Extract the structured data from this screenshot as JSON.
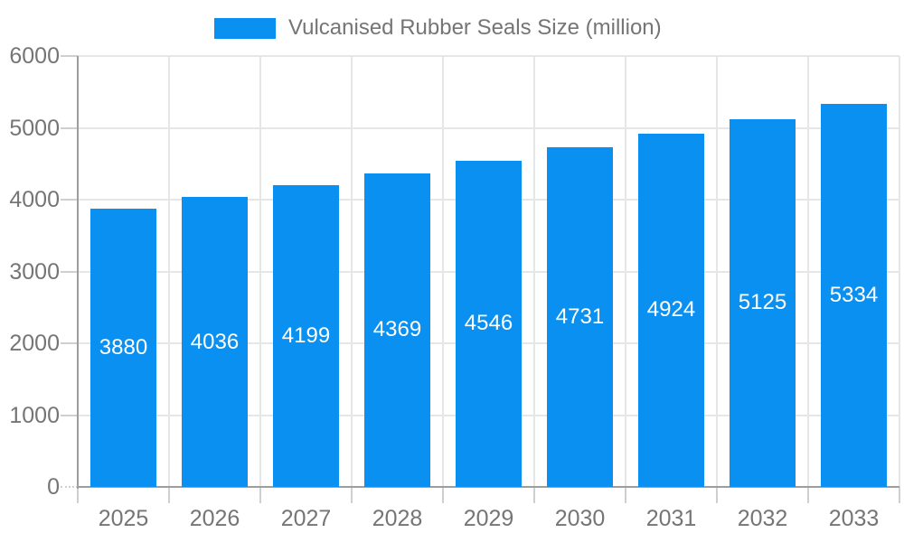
{
  "chart_data": {
    "type": "bar",
    "title": "",
    "legend": "Vulcanised Rubber Seals Size (million)",
    "legend_position": "top",
    "categories": [
      "2025",
      "2026",
      "2027",
      "2028",
      "2029",
      "2030",
      "2031",
      "2032",
      "2033"
    ],
    "series": [
      {
        "name": "Vulcanised Rubber Seals Size (million)",
        "values": [
          3880,
          4036,
          4199,
          4369,
          4546,
          4731,
          4924,
          5125,
          5334
        ]
      }
    ],
    "value_labels": "inside-center",
    "xlabel": "",
    "ylabel": "",
    "ylim": [
      0,
      6000
    ],
    "yticks": [
      0,
      1000,
      2000,
      3000,
      4000,
      5000,
      6000
    ],
    "grid": true,
    "colors": {
      "bar": "#0a90f1",
      "axis_text": "#757575",
      "value_text": "#ffffff",
      "gridline": "#e6e6e6",
      "tick": "#cfcfcf",
      "axis_line": "#9e9e9e",
      "background": "#ffffff"
    }
  }
}
